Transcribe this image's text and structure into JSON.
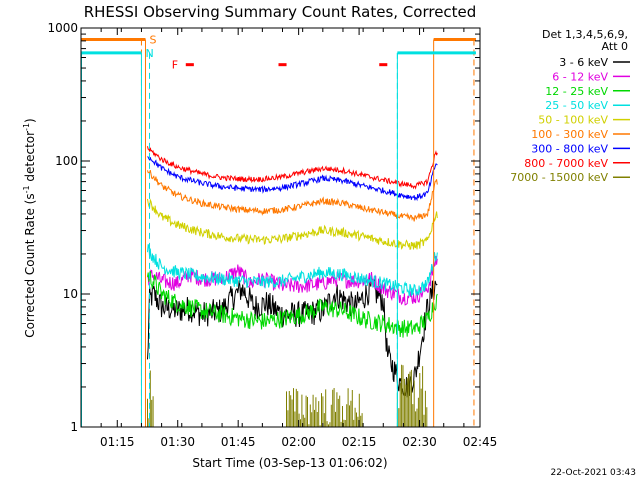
{
  "chart_data": {
    "type": "line",
    "title": "RHESSI Observing Summary Count Rates, Corrected",
    "xlabel": "Start Time (03-Sep-13 01:06:02)",
    "ylabel": "Corrected Count Rate (s",
    "ylabel_sup": "-1",
    "ylabel_mid": " detector",
    "ylabel_sup2": "-1",
    "ylabel_end": ")",
    "yscale": "log",
    "ylim": [
      1,
      1000
    ],
    "xlim_minutes": [
      0,
      99
    ],
    "y_ticks": [
      {
        "value": 1,
        "label": "1"
      },
      {
        "value": 10,
        "label": "10"
      },
      {
        "value": 100,
        "label": "100"
      },
      {
        "value": 1000,
        "label": "1000"
      }
    ],
    "x_ticks": [
      {
        "minute": 9,
        "label": "01:15"
      },
      {
        "minute": 24,
        "label": "01:30"
      },
      {
        "minute": 39,
        "label": "01:45"
      },
      {
        "minute": 54,
        "label": "02:00"
      },
      {
        "minute": 69,
        "label": "02:15"
      },
      {
        "minute": 84,
        "label": "02:30"
      },
      {
        "minute": 99,
        "label": "02:45"
      }
    ],
    "legend": {
      "header1": "Det 1,3,4,5,6,9,",
      "header2": "Att 0",
      "entries": [
        {
          "label": "3 - 6 keV",
          "color": "#000000"
        },
        {
          "label": "6 - 12 keV",
          "color": "#e000e0"
        },
        {
          "label": "12 - 25 keV",
          "color": "#00d800"
        },
        {
          "label": "25 - 50 keV",
          "color": "#00e0e0"
        },
        {
          "label": "50 - 100 keV",
          "color": "#d0d000"
        },
        {
          "label": "100 - 300 keV",
          "color": "#ff7800"
        },
        {
          "label": "300 - 800 keV",
          "color": "#0000ff"
        },
        {
          "label": "800 - 7000 keV",
          "color": "#ff0000"
        },
        {
          "label": "7000 - 15000 keV",
          "color": "#808000"
        }
      ]
    },
    "series": [
      {
        "name": "3 - 6 keV",
        "color": "#000000",
        "start_min": 16.5,
        "end_min": 88.5,
        "knots": [
          [
            16.5,
            3.0
          ],
          [
            17,
            9.0
          ],
          [
            18,
            10.0
          ],
          [
            20,
            8.0
          ],
          [
            24,
            7.5
          ],
          [
            27,
            7.8
          ],
          [
            30,
            7.0
          ],
          [
            35,
            7.5
          ],
          [
            37,
            9.0
          ],
          [
            40,
            11.0
          ],
          [
            43,
            8.0
          ],
          [
            46,
            8.5
          ],
          [
            50,
            7.0
          ],
          [
            55,
            7.0
          ],
          [
            60,
            7.5
          ],
          [
            63,
            10.0
          ],
          [
            68,
            8.0
          ],
          [
            72,
            11.0
          ],
          [
            75,
            9.0
          ],
          [
            76,
            3.5
          ],
          [
            79,
            2.2
          ],
          [
            81,
            2.0
          ],
          [
            83,
            2.5
          ],
          [
            86,
            8.0
          ],
          [
            88,
            12.0
          ],
          [
            88.5,
            12.0
          ]
        ],
        "noise": 0.1
      },
      {
        "name": "6 - 12 keV",
        "color": "#e000e0",
        "start_min": 16.5,
        "end_min": 88.5,
        "knots": [
          [
            16.5,
            13.0
          ],
          [
            18,
            14.0
          ],
          [
            20,
            12.5
          ],
          [
            24,
            12.0
          ],
          [
            27,
            14.0
          ],
          [
            30,
            13.0
          ],
          [
            35,
            13.0
          ],
          [
            39,
            15.0
          ],
          [
            42,
            12.0
          ],
          [
            45,
            13.0
          ],
          [
            50,
            11.5
          ],
          [
            55,
            11.5
          ],
          [
            60,
            12.0
          ],
          [
            63,
            13.0
          ],
          [
            68,
            12.5
          ],
          [
            72,
            13.0
          ],
          [
            75,
            11.0
          ],
          [
            80,
            9.5
          ],
          [
            83,
            9.5
          ],
          [
            86,
            11.0
          ],
          [
            88,
            18.0
          ],
          [
            88.5,
            18.0
          ]
        ],
        "noise": 0.06
      },
      {
        "name": "12 - 25 keV",
        "color": "#00d800",
        "start_min": 16.5,
        "end_min": 88.5,
        "knots": [
          [
            16.5,
            14.0
          ],
          [
            18,
            12.5
          ],
          [
            20,
            10.0
          ],
          [
            24,
            8.5
          ],
          [
            30,
            7.5
          ],
          [
            35,
            7.0
          ],
          [
            40,
            6.5
          ],
          [
            45,
            6.2
          ],
          [
            50,
            6.5
          ],
          [
            55,
            7.0
          ],
          [
            60,
            8.0
          ],
          [
            65,
            7.5
          ],
          [
            70,
            6.5
          ],
          [
            75,
            6.0
          ],
          [
            80,
            5.5
          ],
          [
            83,
            5.5
          ],
          [
            86,
            6.5
          ],
          [
            88,
            9.0
          ],
          [
            88.5,
            9.0
          ]
        ],
        "noise": 0.07
      },
      {
        "name": "25 - 50 keV",
        "color": "#00e0e0",
        "start_min": 16.5,
        "end_min": 88.5,
        "knots": [
          [
            16.5,
            22.0
          ],
          [
            18,
            19.0
          ],
          [
            20,
            16.0
          ],
          [
            24,
            14.5
          ],
          [
            30,
            13.5
          ],
          [
            35,
            13.0
          ],
          [
            40,
            12.5
          ],
          [
            45,
            12.3
          ],
          [
            50,
            12.5
          ],
          [
            55,
            13.5
          ],
          [
            60,
            14.5
          ],
          [
            65,
            14.0
          ],
          [
            70,
            13.0
          ],
          [
            75,
            12.0
          ],
          [
            80,
            11.0
          ],
          [
            83,
            10.5
          ],
          [
            86,
            12.0
          ],
          [
            88,
            20.0
          ],
          [
            88.5,
            20.0
          ]
        ],
        "noise": 0.05
      },
      {
        "name": "50 - 100 keV",
        "color": "#d0d000",
        "start_min": 16.5,
        "end_min": 88.5,
        "knots": [
          [
            16.5,
            50.0
          ],
          [
            18,
            45.0
          ],
          [
            20,
            38.0
          ],
          [
            24,
            33.0
          ],
          [
            30,
            29.0
          ],
          [
            35,
            27.0
          ],
          [
            40,
            26.0
          ],
          [
            45,
            25.5
          ],
          [
            50,
            26.0
          ],
          [
            55,
            28.0
          ],
          [
            60,
            30.0
          ],
          [
            65,
            29.0
          ],
          [
            70,
            27.0
          ],
          [
            75,
            25.0
          ],
          [
            80,
            23.5
          ],
          [
            83,
            23.0
          ],
          [
            86,
            25.0
          ],
          [
            88,
            40.0
          ],
          [
            88.5,
            40.0
          ]
        ],
        "noise": 0.035
      },
      {
        "name": "100 - 300 keV",
        "color": "#ff7800",
        "start_min": 16.5,
        "end_min": 88.5,
        "knots": [
          [
            16.5,
            85.0
          ],
          [
            18,
            76.0
          ],
          [
            20,
            65.0
          ],
          [
            24,
            55.0
          ],
          [
            30,
            48.0
          ],
          [
            35,
            45.0
          ],
          [
            40,
            43.0
          ],
          [
            45,
            42.0
          ],
          [
            50,
            43.0
          ],
          [
            55,
            46.0
          ],
          [
            60,
            50.0
          ],
          [
            65,
            48.0
          ],
          [
            70,
            44.0
          ],
          [
            75,
            41.0
          ],
          [
            80,
            38.0
          ],
          [
            83,
            37.0
          ],
          [
            86,
            40.0
          ],
          [
            88,
            70.0
          ],
          [
            88.5,
            70.0
          ]
        ],
        "noise": 0.025
      },
      {
        "name": "300 - 800 keV",
        "color": "#0000ff",
        "start_min": 16.5,
        "end_min": 88.5,
        "knots": [
          [
            16.5,
            110.0
          ],
          [
            18,
            100.0
          ],
          [
            20,
            88.0
          ],
          [
            24,
            76.0
          ],
          [
            30,
            68.0
          ],
          [
            35,
            64.0
          ],
          [
            40,
            62.0
          ],
          [
            45,
            61.0
          ],
          [
            50,
            63.0
          ],
          [
            55,
            68.0
          ],
          [
            60,
            74.0
          ],
          [
            65,
            71.0
          ],
          [
            70,
            65.0
          ],
          [
            75,
            60.0
          ],
          [
            80,
            55.0
          ],
          [
            83,
            53.0
          ],
          [
            86,
            57.0
          ],
          [
            88,
            95.0
          ],
          [
            88.5,
            95.0
          ]
        ],
        "noise": 0.022
      },
      {
        "name": "800 - 7000 keV",
        "color": "#ff0000",
        "start_min": 16.5,
        "end_min": 88.5,
        "knots": [
          [
            16.5,
            125.0
          ],
          [
            18,
            115.0
          ],
          [
            20,
            103.0
          ],
          [
            24,
            90.0
          ],
          [
            30,
            80.0
          ],
          [
            35,
            75.0
          ],
          [
            40,
            73.0
          ],
          [
            45,
            73.0
          ],
          [
            50,
            76.0
          ],
          [
            55,
            82.0
          ],
          [
            60,
            88.0
          ],
          [
            65,
            85.0
          ],
          [
            70,
            78.0
          ],
          [
            75,
            72.0
          ],
          [
            80,
            67.0
          ],
          [
            83,
            65.0
          ],
          [
            86,
            70.0
          ],
          [
            88,
            115.0
          ],
          [
            88.5,
            115.0
          ]
        ],
        "noise": 0.02
      },
      {
        "name": "7000 - 15000 keV",
        "color": "#808000",
        "type": "bursts",
        "bursts": [
          [
            16.5,
            18.0,
            3.0
          ],
          [
            51.0,
            70.0,
            2.0
          ],
          [
            78.5,
            86.0,
            3.0
          ]
        ]
      }
    ],
    "markers": [
      {
        "kind": "saa",
        "label": "S",
        "color": "#ff7800",
        "start_min": -1,
        "end_min": 16,
        "level": 820,
        "dash_at_min": 15.0
      },
      {
        "kind": "saa",
        "label": "",
        "color": "#ff7800",
        "start_min": 87.5,
        "end_min": 98,
        "level": 820,
        "dash_at_min": 97.5
      },
      {
        "kind": "night",
        "label": "N",
        "color": "#00e0e0",
        "start_min": -1,
        "end_min": 15,
        "level": 650,
        "dash_at_min": 17.0
      },
      {
        "kind": "night",
        "label": "",
        "color": "#00e0e0",
        "start_min": 78.5,
        "end_min": 98,
        "level": 650,
        "dash_at_min": 78.5
      }
    ],
    "flare_flag": {
      "label": "F",
      "color": "#ff0000",
      "level": 530,
      "segments": [
        [
          26.0,
          28.0
        ],
        [
          49.0,
          51.0
        ],
        [
          74.0,
          76.0
        ]
      ]
    },
    "timestamp": "22-Oct-2021 03:43"
  }
}
